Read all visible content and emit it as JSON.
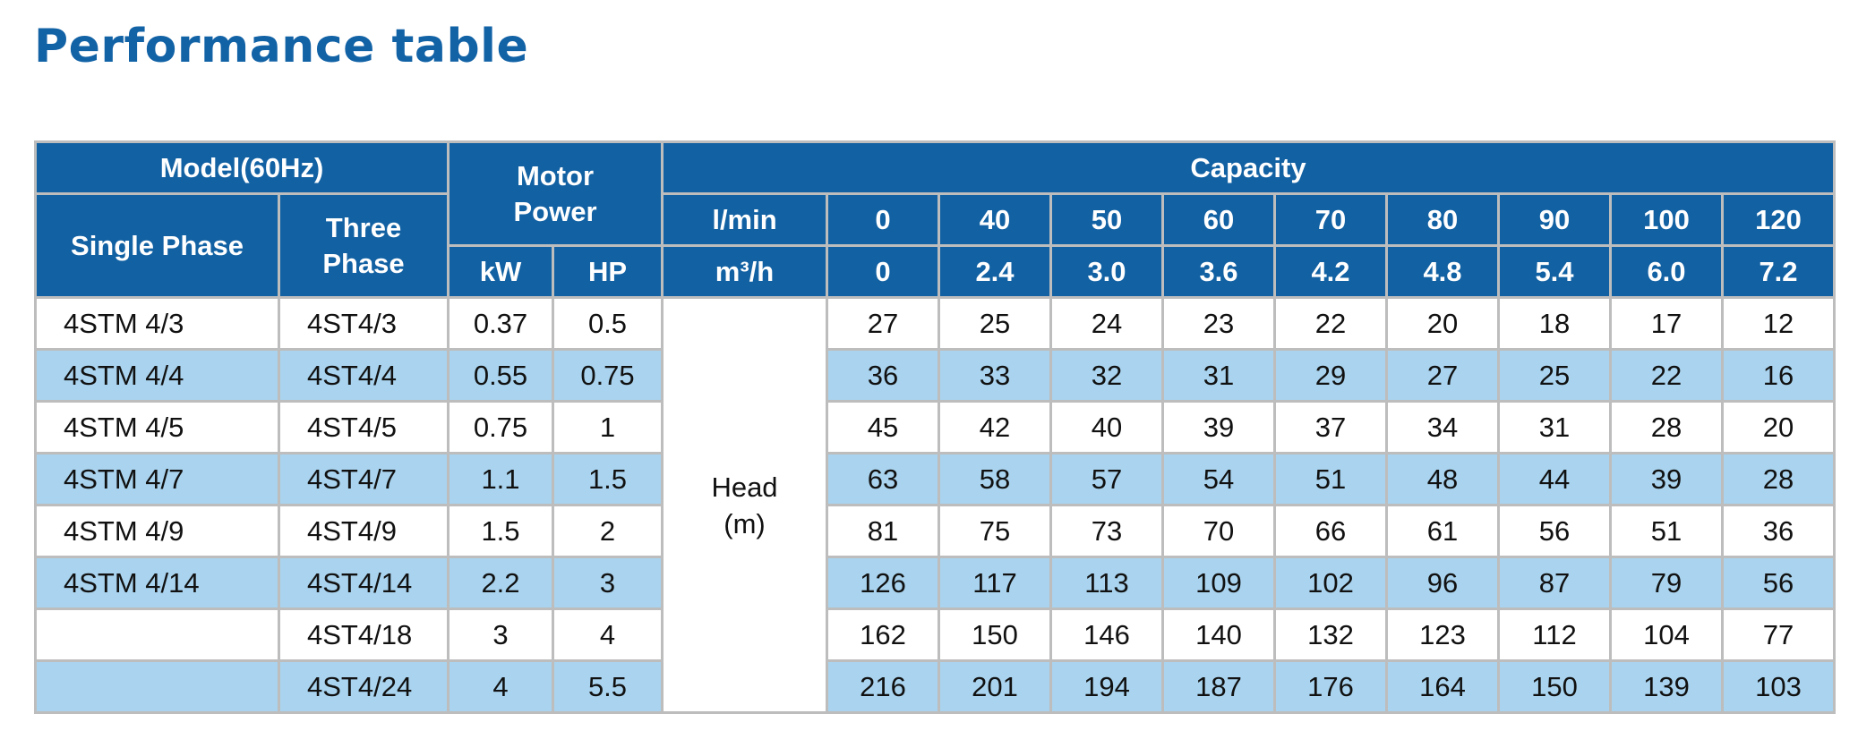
{
  "title": "Performance table",
  "header": {
    "model": "Model(60Hz)",
    "motor_power": [
      "Motor",
      "Power"
    ],
    "capacity": "Capacity",
    "single_phase": "Single Phase",
    "three_phase": [
      "Three",
      "Phase"
    ],
    "kw": "kW",
    "hp": "HP",
    "lmin_label": "l/min",
    "m3h_label": "m³/h",
    "lmin": [
      "0",
      "40",
      "50",
      "60",
      "70",
      "80",
      "90",
      "100",
      "120"
    ],
    "m3h": [
      "0",
      "2.4",
      "3.0",
      "3.6",
      "4.2",
      "4.8",
      "5.4",
      "6.0",
      "7.2"
    ]
  },
  "head_label": [
    "Head",
    "(m)"
  ],
  "rows": [
    {
      "single": "4STM 4/3",
      "three": "4ST4/3",
      "kw": "0.37",
      "hp": "0.5",
      "heads": [
        "27",
        "25",
        "24",
        "23",
        "22",
        "20",
        "18",
        "17",
        "12"
      ]
    },
    {
      "single": "4STM 4/4",
      "three": "4ST4/4",
      "kw": "0.55",
      "hp": "0.75",
      "heads": [
        "36",
        "33",
        "32",
        "31",
        "29",
        "27",
        "25",
        "22",
        "16"
      ]
    },
    {
      "single": "4STM 4/5",
      "three": "4ST4/5",
      "kw": "0.75",
      "hp": "1",
      "heads": [
        "45",
        "42",
        "40",
        "39",
        "37",
        "34",
        "31",
        "28",
        "20"
      ]
    },
    {
      "single": "4STM 4/7",
      "three": "4ST4/7",
      "kw": "1.1",
      "hp": "1.5",
      "heads": [
        "63",
        "58",
        "57",
        "54",
        "51",
        "48",
        "44",
        "39",
        "28"
      ]
    },
    {
      "single": "4STM 4/9",
      "three": "4ST4/9",
      "kw": "1.5",
      "hp": "2",
      "heads": [
        "81",
        "75",
        "73",
        "70",
        "66",
        "61",
        "56",
        "51",
        "36"
      ]
    },
    {
      "single": "4STM 4/14",
      "three": "4ST4/14",
      "kw": "2.2",
      "hp": "3",
      "heads": [
        "126",
        "117",
        "113",
        "109",
        "102",
        "96",
        "87",
        "79",
        "56"
      ]
    },
    {
      "single": "",
      "three": "4ST4/18",
      "kw": "3",
      "hp": "4",
      "heads": [
        "162",
        "150",
        "146",
        "140",
        "132",
        "123",
        "112",
        "104",
        "77"
      ]
    },
    {
      "single": "",
      "three": "4ST4/24",
      "kw": "4",
      "hp": "5.5",
      "heads": [
        "216",
        "201",
        "194",
        "187",
        "176",
        "164",
        "150",
        "139",
        "103"
      ]
    }
  ],
  "colors": {
    "title": "#1262a6",
    "header_bg": "#1261a3",
    "row_alt": "#a9d3ee",
    "border": "#bdbdbd"
  }
}
